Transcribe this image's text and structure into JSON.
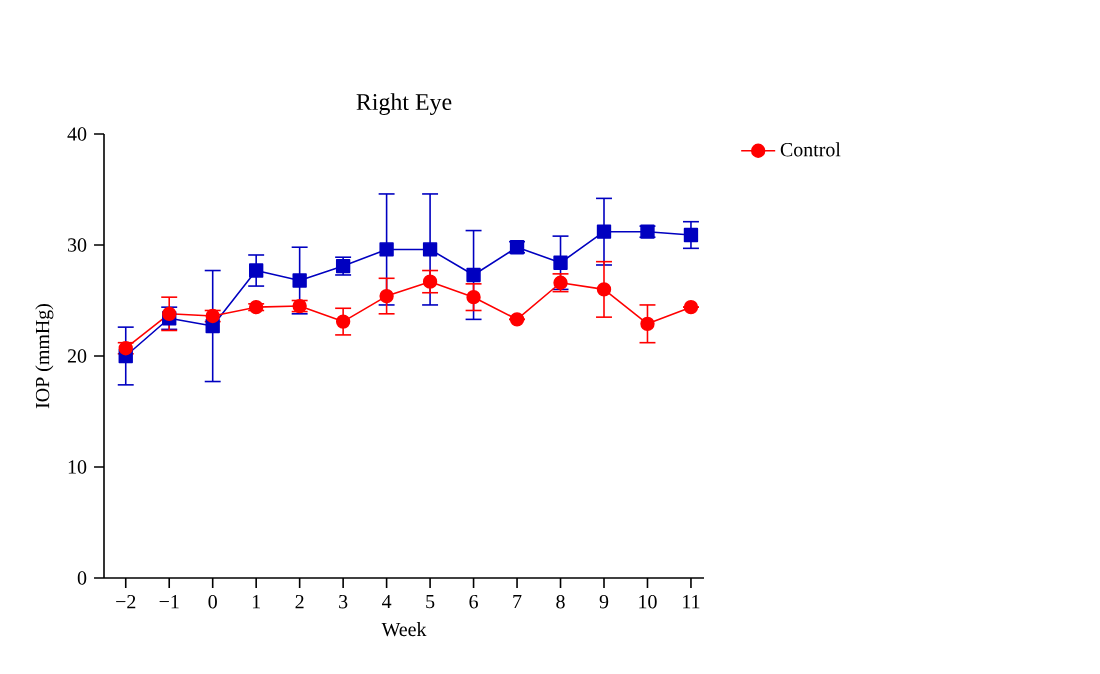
{
  "chart_data": {
    "type": "line",
    "title": "Right Eye",
    "xlabel": "Week",
    "ylabel": "IOP (mmHg)",
    "x": [
      -2,
      -1,
      0,
      1,
      2,
      3,
      4,
      5,
      6,
      7,
      8,
      9,
      10,
      11
    ],
    "xlim": [
      -2.5,
      11.3
    ],
    "xticks": [
      {
        "value": -2,
        "label": "−2"
      },
      {
        "value": -1,
        "label": "−1"
      },
      0,
      1,
      2,
      3,
      4,
      5,
      6,
      7,
      8,
      9,
      10,
      11
    ],
    "ylim": [
      0,
      40
    ],
    "yticks": [
      0,
      10,
      20,
      30,
      40
    ],
    "grid": false,
    "legend": "top right",
    "series": [
      {
        "name": "Control",
        "color": "#ff0000",
        "marker": "circle",
        "values": [
          20.7,
          23.8,
          23.6,
          24.4,
          24.5,
          23.1,
          25.4,
          26.7,
          25.3,
          23.3,
          26.6,
          26.0,
          22.9,
          24.4
        ],
        "errors": [
          0.5,
          1.5,
          0.5,
          0.3,
          0.5,
          1.2,
          1.6,
          1.0,
          1.2,
          null,
          0.8,
          2.5,
          1.7,
          null
        ]
      },
      {
        "color": "#0000c0",
        "marker": "square",
        "values": [
          20.0,
          23.4,
          22.7,
          27.7,
          26.8,
          28.1,
          29.6,
          29.6,
          27.3,
          29.8,
          28.4,
          31.2,
          31.2,
          30.9
        ],
        "errors": [
          2.6,
          1.0,
          5.0,
          1.4,
          3.0,
          0.8,
          5.0,
          5.0,
          4.0,
          0.5,
          2.4,
          3.0,
          0.5,
          1.2
        ]
      }
    ]
  }
}
